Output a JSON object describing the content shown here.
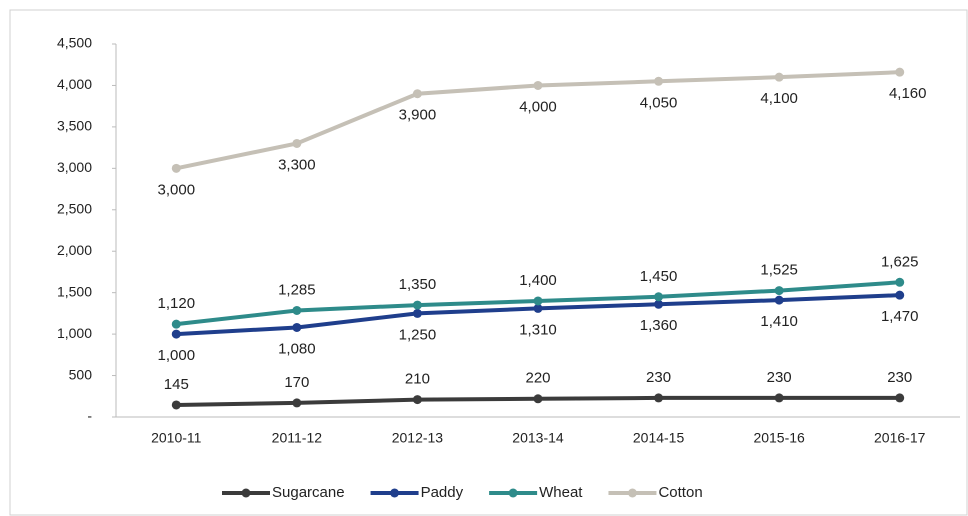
{
  "chart_data": {
    "type": "line",
    "categories": [
      "2010-11",
      "2011-12",
      "2012-13",
      "2013-14",
      "2014-15",
      "2015-16",
      "2016-17"
    ],
    "series": [
      {
        "name": "Sugarcane",
        "color": "#3b3b3b",
        "values": [
          145,
          170,
          210,
          220,
          230,
          230,
          230
        ]
      },
      {
        "name": "Paddy",
        "color": "#1f3e8c",
        "values": [
          1000,
          1080,
          1250,
          1310,
          1360,
          1410,
          1470
        ],
        "value_labels": [
          "1,000",
          "1,080",
          "1,250",
          "1,310",
          "1,360",
          "1,410",
          "1,470"
        ]
      },
      {
        "name": "Wheat",
        "color": "#2e8b8a",
        "values": [
          1120,
          1285,
          1350,
          1400,
          1450,
          1525,
          1625
        ],
        "value_labels": [
          "1,120",
          "1,285",
          "1,350",
          "1,400",
          "1,450",
          "1,525",
          "1,625"
        ]
      },
      {
        "name": "Cotton",
        "color": "#c5c0b6",
        "values": [
          3000,
          3300,
          3900,
          4000,
          4050,
          4100,
          4160
        ],
        "value_labels": [
          "3,000",
          "3,300",
          "3,900",
          "4,000",
          "4,050",
          "4,100",
          "4,160"
        ]
      }
    ],
    "ylim": [
      0,
      4500
    ],
    "yticks": [
      {
        "value": 0,
        "label": "-"
      },
      500,
      {
        "value": 1000,
        "label": "1,000"
      },
      {
        "value": 1500,
        "label": "1,500"
      },
      {
        "value": 2000,
        "label": "2,000"
      },
      {
        "value": 2500,
        "label": "2,500"
      },
      {
        "value": 3000,
        "label": "3,000"
      },
      {
        "value": 3500,
        "label": "3,500"
      },
      {
        "value": 4000,
        "label": "4,000"
      },
      {
        "value": 4500,
        "label": "4,500"
      }
    ],
    "legend": "bottom",
    "grid": false
  }
}
